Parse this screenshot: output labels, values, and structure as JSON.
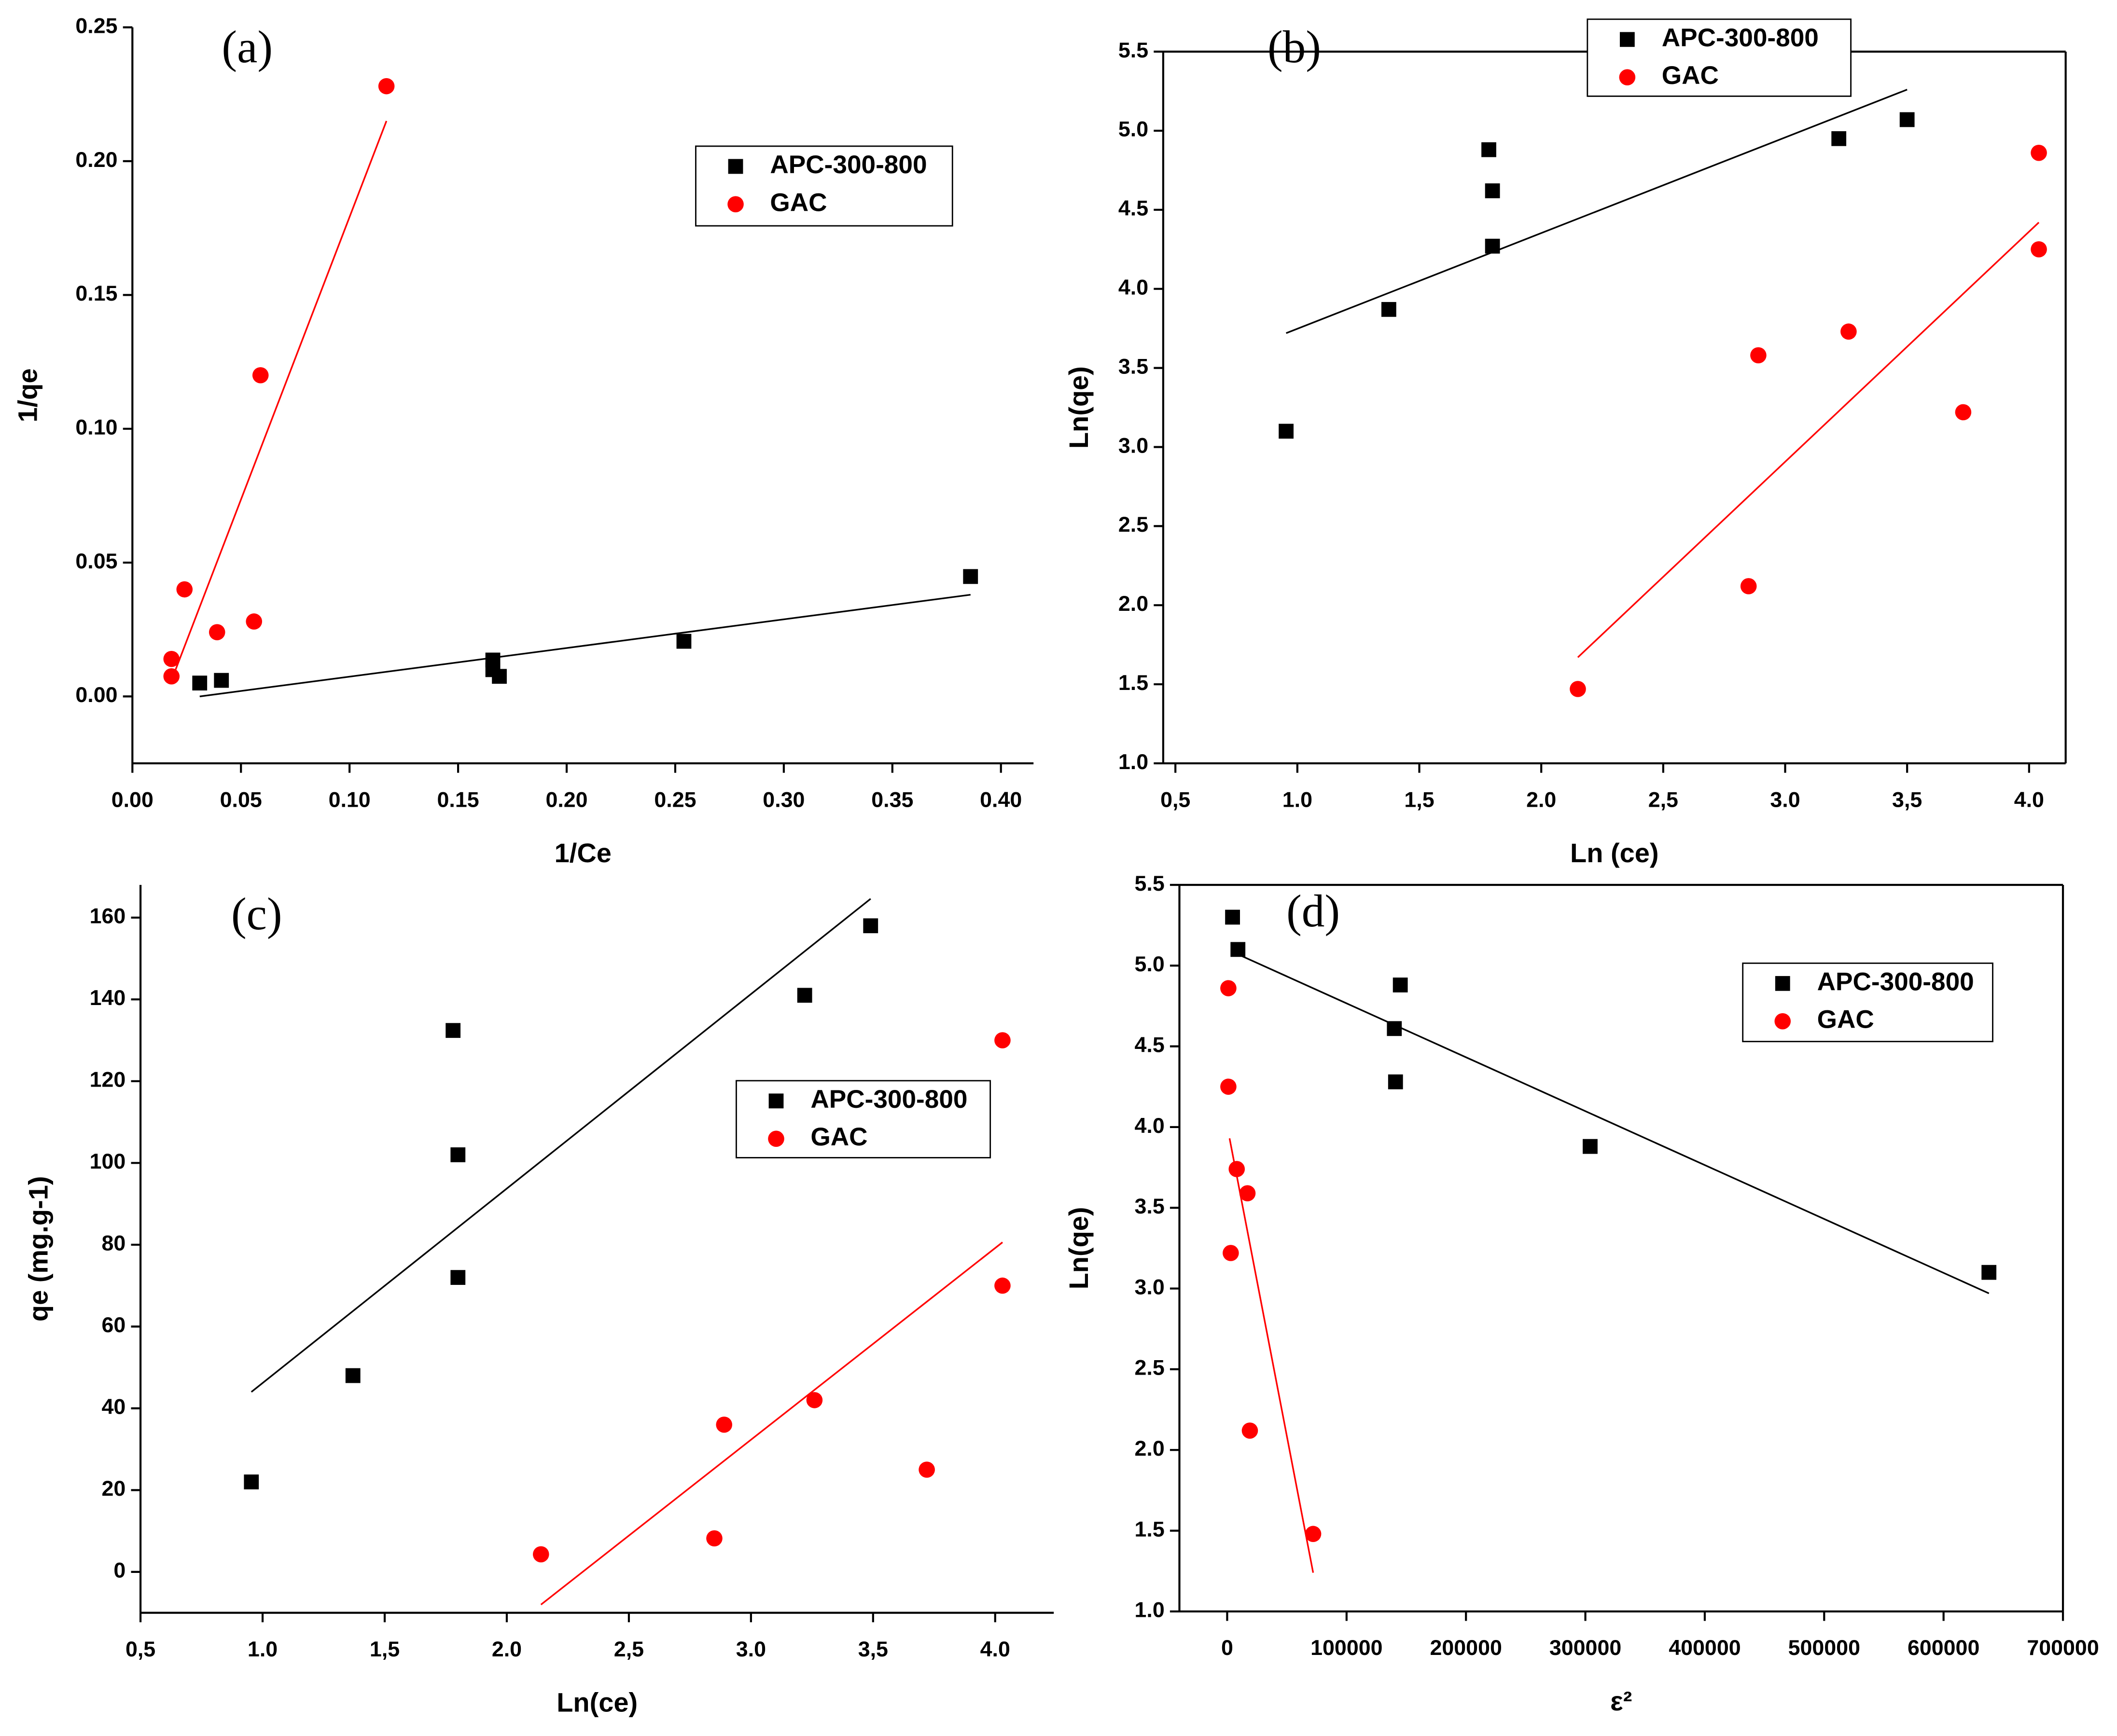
{
  "chart_data": [
    {
      "type": "scatter",
      "panel": "(a)",
      "x_label": "1/Ce",
      "y_label": "1/qe",
      "xlim": [
        0,
        0.415
      ],
      "ylim": [
        -0.025,
        0.25
      ],
      "xticks": [
        {
          "value": 0,
          "label": "0.00"
        },
        0.05,
        {
          "value": 0.1,
          "label": "0.10"
        },
        0.15,
        {
          "value": 0.2,
          "label": "0.20"
        },
        0.25,
        {
          "value": 0.3,
          "label": "0.30"
        },
        0.35,
        {
          "value": 0.4,
          "label": "0.40"
        }
      ],
      "yticks": [
        {
          "value": 0,
          "label": "0.00"
        },
        0.05,
        {
          "value": 0.1,
          "label": "0.10"
        },
        0.15,
        {
          "value": 0.2,
          "label": "0.20"
        },
        0.25
      ],
      "series": [
        {
          "name": "APC-300-800",
          "color": "#000000",
          "marker": "square",
          "x": [
            0.031,
            0.041,
            0.166,
            0.166,
            0.169,
            0.254,
            0.386
          ],
          "values": [
            0.005,
            0.006,
            0.0136,
            0.01,
            0.0075,
            0.0206,
            0.0448
          ],
          "fit": {
            "x": [
              0.031,
              0.386
            ],
            "y": [
              0.0,
              0.038
            ]
          }
        },
        {
          "name": "GAC",
          "color": "#ff0000",
          "marker": "circle",
          "x": [
            0.018,
            0.018,
            0.024,
            0.039,
            0.056,
            0.059,
            0.117
          ],
          "values": [
            0.0075,
            0.014,
            0.04,
            0.024,
            0.028,
            0.12,
            0.228
          ],
          "fit": {
            "x": [
              0.018,
              0.117
            ],
            "y": [
              0.006,
              0.215
            ]
          }
        }
      ]
    },
    {
      "type": "scatter",
      "panel": "(b)",
      "x_label": "Ln (ce)",
      "y_label": "Ln(qe)",
      "xlim": [
        0.45,
        4.15
      ],
      "ylim": [
        1.0,
        5.5
      ],
      "xticks": [
        {
          "value": 0.5,
          "label": "0,5"
        },
        {
          "value": 1.0,
          "label": "1.0"
        },
        {
          "value": 1.5,
          "label": "1,5"
        },
        {
          "value": 2.0,
          "label": "2.0"
        },
        {
          "value": 2.5,
          "label": "2,5"
        },
        {
          "value": 3.0,
          "label": "3.0"
        },
        {
          "value": 3.5,
          "label": "3,5"
        },
        {
          "value": 4.0,
          "label": "4.0"
        }
      ],
      "yticks": [
        {
          "value": 1.0,
          "label": "1.0"
        },
        1.5,
        {
          "value": 2.0,
          "label": "2.0"
        },
        2.5,
        {
          "value": 3.0,
          "label": "3.0"
        },
        3.5,
        {
          "value": 4.0,
          "label": "4.0"
        },
        4.5,
        {
          "value": 5.0,
          "label": "5.0"
        },
        5.5
      ],
      "series": [
        {
          "name": "APC-300-800",
          "color": "#000000",
          "marker": "square",
          "x": [
            0.954,
            1.375,
            1.785,
            1.8,
            1.8,
            3.22,
            3.5
          ],
          "values": [
            3.1,
            3.87,
            4.88,
            4.62,
            4.27,
            4.95,
            5.07
          ],
          "fit": {
            "x": [
              0.954,
              3.5
            ],
            "y": [
              3.72,
              5.26
            ]
          }
        },
        {
          "name": "GAC",
          "color": "#ff0000",
          "marker": "circle",
          "x": [
            2.15,
            2.85,
            2.89,
            3.26,
            3.73,
            4.04,
            4.04
          ],
          "values": [
            1.47,
            2.12,
            3.58,
            3.73,
            3.22,
            4.86,
            4.25
          ],
          "fit": {
            "x": [
              2.15,
              4.04
            ],
            "y": [
              1.67,
              4.42
            ]
          }
        }
      ]
    },
    {
      "type": "scatter",
      "panel": "(c)",
      "x_label": "Ln(ce)",
      "y_label": "qe (mg.g-1)",
      "xlim": [
        0.5,
        4.24
      ],
      "ylim": [
        -10,
        168
      ],
      "xticks": [
        {
          "value": 0.5,
          "label": "0,5"
        },
        {
          "value": 1.0,
          "label": "1.0"
        },
        {
          "value": 1.5,
          "label": "1,5"
        },
        {
          "value": 2.0,
          "label": "2.0"
        },
        {
          "value": 2.5,
          "label": "2,5"
        },
        {
          "value": 3.0,
          "label": "3.0"
        },
        {
          "value": 3.5,
          "label": "3,5"
        },
        {
          "value": 4.0,
          "label": "4.0"
        }
      ],
      "yticks": [
        0,
        20,
        40,
        60,
        80,
        100,
        120,
        140,
        160
      ],
      "series": [
        {
          "name": "APC-300-800",
          "color": "#000000",
          "marker": "square",
          "x": [
            0.954,
            1.37,
            1.78,
            1.8,
            1.8,
            3.22,
            3.49
          ],
          "values": [
            22,
            48,
            132.4,
            102,
            72,
            141,
            158
          ],
          "fit": {
            "x": [
              0.954,
              3.49
            ],
            "y": [
              44,
              164.6
            ]
          }
        },
        {
          "name": "GAC",
          "color": "#ff0000",
          "marker": "circle",
          "x": [
            2.14,
            2.85,
            2.89,
            3.26,
            3.72,
            4.03,
            4.03
          ],
          "values": [
            4.3,
            8.2,
            36,
            42,
            25,
            70,
            130
          ],
          "fit": {
            "x": [
              2.14,
              4.03
            ],
            "y": [
              -8,
              80.6
            ]
          }
        }
      ]
    },
    {
      "type": "scatter",
      "panel": "(d)",
      "x_label": "ε²",
      "y_label": "Ln(qe)",
      "xlim": [
        -40000,
        700000
      ],
      "ylim": [
        1.0,
        5.5
      ],
      "xticks": [
        0,
        100000,
        200000,
        300000,
        400000,
        500000,
        600000,
        700000
      ],
      "yticks": [
        {
          "value": 1.0,
          "label": "1.0"
        },
        1.5,
        {
          "value": 2.0,
          "label": "2.0"
        },
        2.5,
        {
          "value": 3.0,
          "label": "3.0"
        },
        3.5,
        {
          "value": 4.0,
          "label": "4.0"
        },
        4.5,
        {
          "value": 5.0,
          "label": "5.0"
        },
        5.5
      ],
      "series": [
        {
          "name": "APC-300-800",
          "color": "#000000",
          "marker": "square",
          "x": [
            4500,
            9000,
            145000,
            140000,
            141000,
            304000,
            638000
          ],
          "values": [
            5.3,
            5.1,
            4.88,
            4.61,
            4.28,
            3.88,
            3.1
          ],
          "fit": {
            "x": [
              9000,
              638000
            ],
            "y": [
              5.07,
              2.97
            ]
          }
        },
        {
          "name": "GAC",
          "color": "#ff0000",
          "marker": "circle",
          "x": [
            1000,
            1000,
            8000,
            17000,
            3000,
            19000,
            72000
          ],
          "values": [
            4.86,
            4.25,
            3.74,
            3.59,
            3.22,
            2.12,
            1.48
          ],
          "fit": {
            "x": [
              2000,
              72000
            ],
            "y": [
              3.93,
              1.24
            ]
          }
        }
      ]
    }
  ]
}
